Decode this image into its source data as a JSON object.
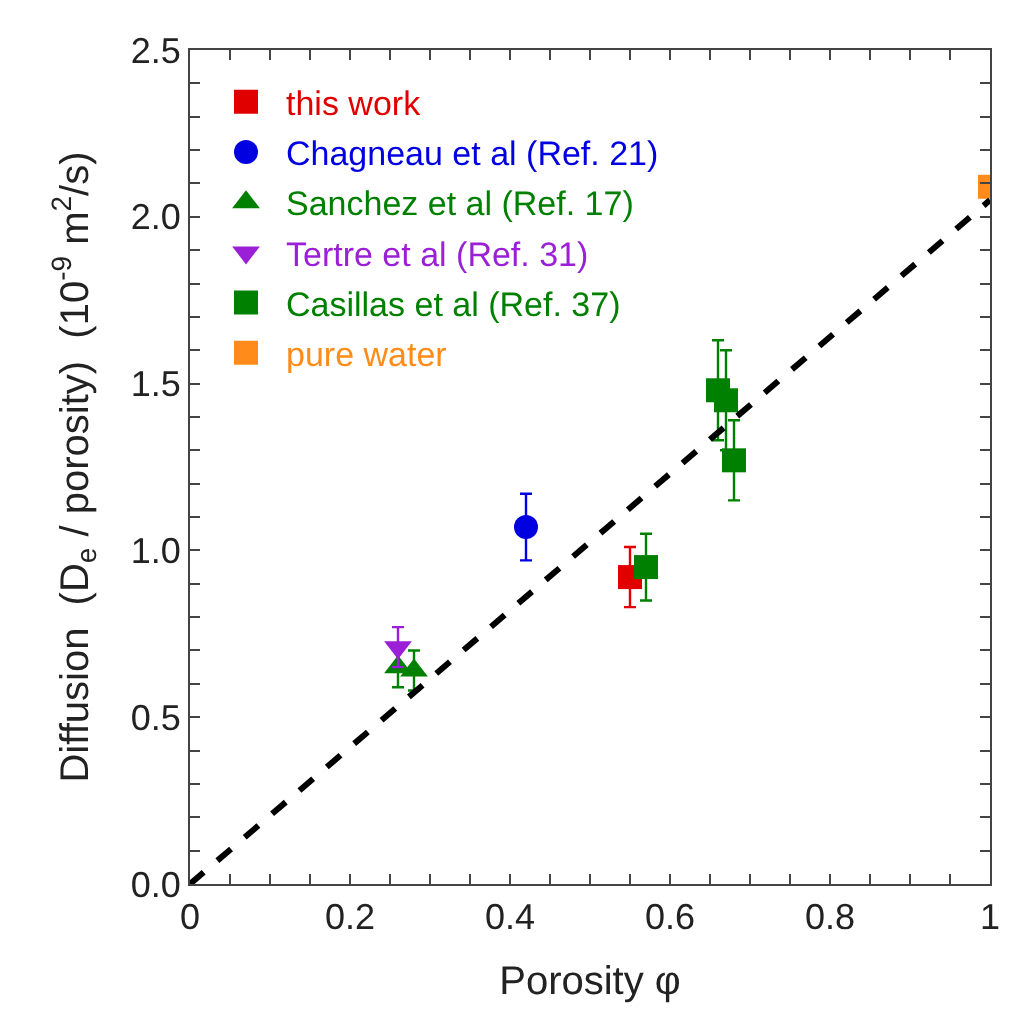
{
  "chart_data": {
    "type": "scatter",
    "xlabel": "Porosity φ",
    "ylabel": "Diffusion  (D$_{e}$ / porosity)  (10$^{-9}$ m$^{2}$/s)",
    "xlim": [
      0,
      1
    ],
    "ylim": [
      0,
      2.5
    ],
    "xticks": [
      {
        "value": 0,
        "label": "0"
      },
      {
        "value": 0.05,
        "label": null
      },
      {
        "value": 0.1,
        "label": null
      },
      {
        "value": 0.15,
        "label": null
      },
      0.2,
      {
        "value": 0.25,
        "label": null
      },
      {
        "value": 0.3,
        "label": null
      },
      {
        "value": 0.35,
        "label": null
      },
      0.4,
      {
        "value": 0.45,
        "label": null
      },
      {
        "value": 0.5,
        "label": null
      },
      {
        "value": 0.55,
        "label": null
      },
      0.6,
      {
        "value": 0.65,
        "label": null
      },
      {
        "value": 0.7,
        "label": null
      },
      {
        "value": 0.75,
        "label": null
      },
      0.8,
      {
        "value": 0.85,
        "label": null
      },
      {
        "value": 0.9,
        "label": null
      },
      {
        "value": 0.95,
        "label": null
      },
      1
    ],
    "yticks": [
      {
        "value": 0,
        "label": "0.0"
      },
      {
        "value": 0.1,
        "label": null
      },
      {
        "value": 0.2,
        "label": null
      },
      {
        "value": 0.3,
        "label": null
      },
      {
        "value": 0.4,
        "label": null
      },
      0.5,
      {
        "value": 0.6,
        "label": null
      },
      {
        "value": 0.7,
        "label": null
      },
      {
        "value": 0.8,
        "label": null
      },
      {
        "value": 0.9,
        "label": null
      },
      {
        "value": 1,
        "label": "1.0"
      },
      {
        "value": 1.1,
        "label": null
      },
      {
        "value": 1.2,
        "label": null
      },
      {
        "value": 1.3,
        "label": null
      },
      {
        "value": 1.4,
        "label": null
      },
      1.5,
      {
        "value": 1.6,
        "label": null
      },
      {
        "value": 1.7,
        "label": null
      },
      {
        "value": 1.8,
        "label": null
      },
      {
        "value": 1.9,
        "label": null
      },
      {
        "value": 2,
        "label": "2.0"
      },
      {
        "value": 2.1,
        "label": null
      },
      {
        "value": 2.2,
        "label": null
      },
      {
        "value": 2.3,
        "label": null
      },
      {
        "value": 2.4,
        "label": null
      },
      2.5
    ],
    "legend": "top left",
    "series": [
      {
        "name": "this work",
        "color": "#e00000",
        "marker": "square",
        "x": [
          0.55
        ],
        "values": [
          0.92
        ],
        "errors": [
          0.09
        ]
      },
      {
        "name": "Chagneau et al (Ref. 21)",
        "color": "#0000e0",
        "marker": "circle",
        "x": [
          0.42
        ],
        "values": [
          1.07
        ],
        "errors": [
          0.1
        ]
      },
      {
        "name": "Sanchez et al (Ref. 17)",
        "color": "#008000",
        "marker": "triangle",
        "x": [
          0.26,
          0.28
        ],
        "values": [
          0.65,
          0.64
        ],
        "errors": [
          0.06,
          0.06
        ]
      },
      {
        "name": "Tertre et al (Ref. 31)",
        "color": "#9b1fd6",
        "marker": "triangle-down",
        "x": [
          0.26
        ],
        "values": [
          0.71
        ],
        "errors": [
          0.06
        ]
      },
      {
        "name": "Casillas et al (Ref. 37)",
        "color": "#008000",
        "marker": "square",
        "x": [
          0.57,
          0.66,
          0.67,
          0.68
        ],
        "values": [
          0.95,
          1.48,
          1.45,
          1.27
        ],
        "errors": [
          0.1,
          0.15,
          0.15,
          0.12
        ]
      },
      {
        "name": "pure water",
        "color": "#ff8c1a",
        "marker": "square",
        "x": [
          1.0
        ],
        "values": [
          2.09
        ]
      },
      {
        "type": "line",
        "color": "#000000",
        "line_style": "dashed",
        "marker": "none",
        "x": [
          0,
          1
        ],
        "values": [
          0,
          2.05
        ]
      }
    ]
  }
}
